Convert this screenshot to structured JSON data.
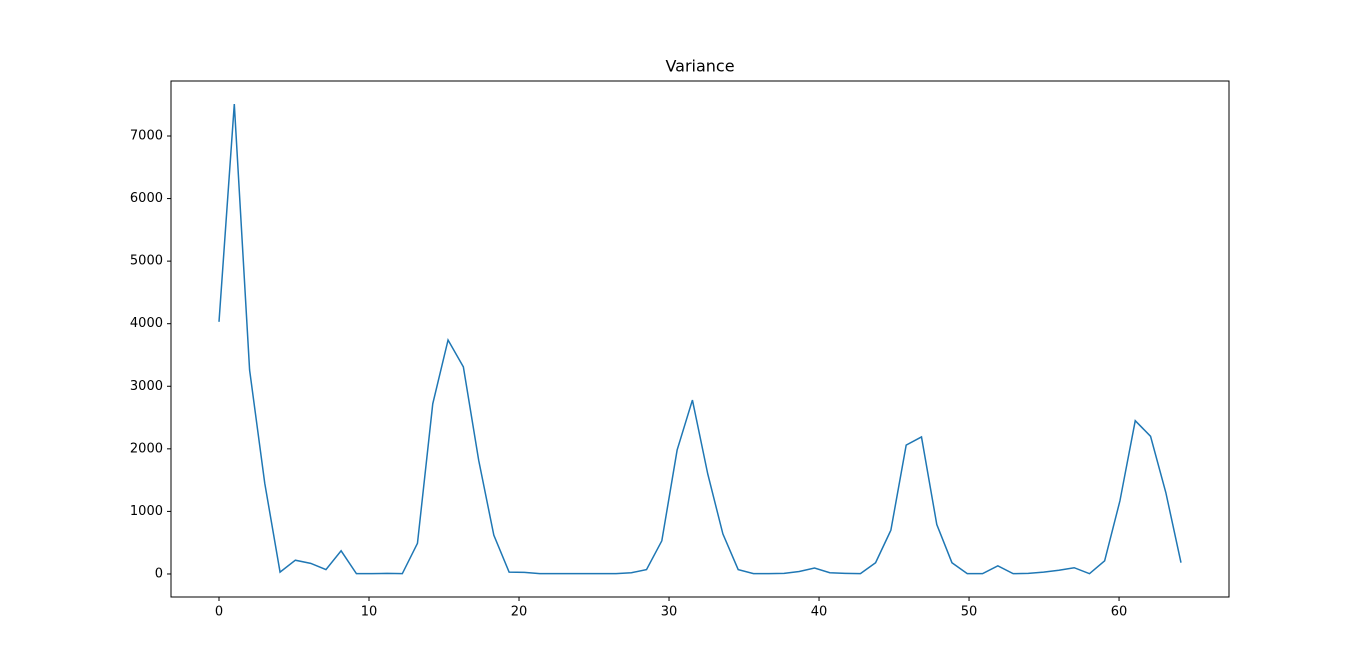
{
  "chart_data": {
    "type": "line",
    "title": "Variance",
    "color": "#1f77b4",
    "x": [
      0,
      1.02,
      2.04,
      3.05,
      4.07,
      5.09,
      6.11,
      7.13,
      8.14,
      9.16,
      10.18,
      11.2,
      12.22,
      13.23,
      14.25,
      15.27,
      16.29,
      17.31,
      18.32,
      19.34,
      20.36,
      21.38,
      22.4,
      23.41,
      24.43,
      25.45,
      26.47,
      27.49,
      28.5,
      29.52,
      30.54,
      31.56,
      32.58,
      33.59,
      34.61,
      35.63,
      36.65,
      37.67,
      38.68,
      39.7,
      40.72,
      41.74,
      42.76,
      43.77,
      44.79,
      45.81,
      46.83,
      47.85,
      48.86,
      49.88,
      50.9,
      51.92,
      52.94,
      53.95,
      54.97,
      55.99,
      57.01,
      58.03,
      59.04,
      60.06,
      61.08,
      62.1,
      63.12,
      64.13
    ],
    "values": [
      4030,
      7510,
      3260,
      1450,
      30,
      220,
      170,
      70,
      370,
      5,
      5,
      10,
      5,
      490,
      2720,
      3740,
      3310,
      1820,
      620,
      30,
      25,
      5,
      5,
      5,
      5,
      5,
      5,
      20,
      70,
      530,
      1980,
      2780,
      1600,
      640,
      70,
      5,
      5,
      10,
      40,
      95,
      20,
      10,
      5,
      180,
      700,
      2060,
      2190,
      790,
      180,
      5,
      5,
      130,
      5,
      10,
      30,
      60,
      100,
      5,
      210,
      1170,
      2450,
      2200,
      1300,
      180
    ],
    "xlim": [
      -3.2,
      67.33
    ],
    "xticks": [
      0,
      10,
      20,
      30,
      40,
      50,
      60
    ],
    "ylim": [
      -368,
      7879
    ],
    "yticks": [
      0,
      1000,
      2000,
      3000,
      4000,
      5000,
      6000,
      7000
    ]
  }
}
